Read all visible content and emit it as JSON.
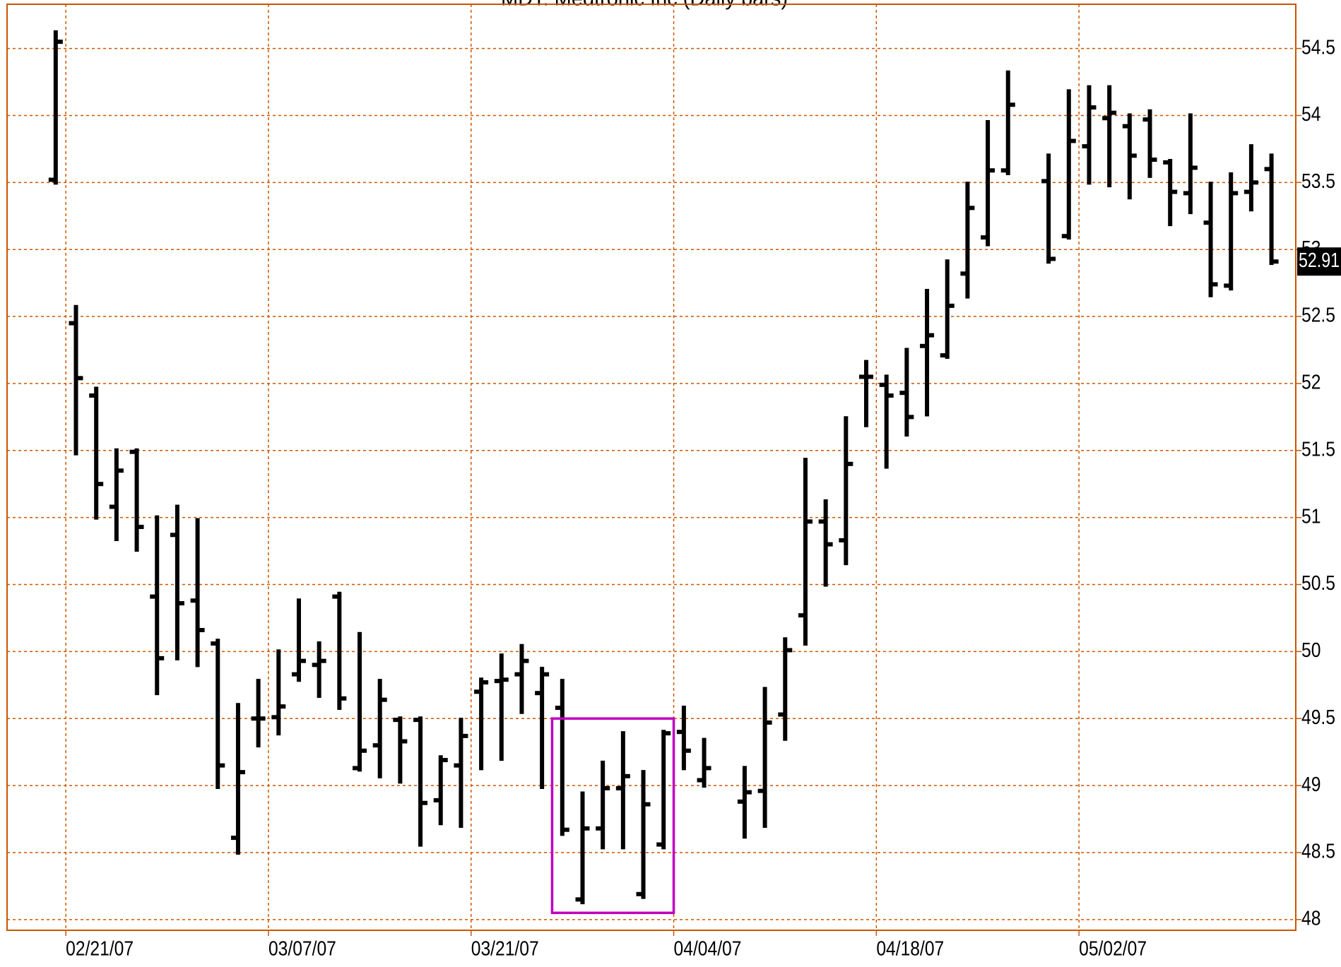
{
  "chart_data": {
    "type": "ohlc",
    "title": "MDT: Medtronic Inc (Daily bars)",
    "x": [
      0,
      1,
      2,
      3,
      4,
      5,
      6,
      7,
      8,
      9,
      10,
      11,
      12,
      13,
      14,
      15,
      16,
      17,
      18,
      19,
      20,
      21,
      22,
      23,
      24,
      25,
      26,
      27,
      28,
      29,
      30,
      31,
      32,
      34,
      35,
      36,
      37,
      38,
      39,
      40,
      41,
      42,
      43,
      44,
      45,
      46,
      47,
      49,
      50,
      51,
      52,
      53,
      54,
      55,
      56,
      57,
      58,
      59,
      60
    ],
    "open": [
      53.52,
      52.45,
      51.91,
      51.08,
      51.49,
      50.41,
      50.87,
      50.38,
      50.06,
      48.61,
      49.5,
      49.51,
      49.83,
      49.9,
      50.41,
      49.13,
      49.3,
      49.49,
      49.49,
      48.89,
      49.15,
      49.7,
      49.78,
      49.83,
      49.69,
      49.58,
      48.15,
      48.68,
      48.98,
      48.19,
      48.56,
      49.4,
      49.04,
      48.88,
      48.96,
      49.53,
      50.27,
      50.97,
      50.83,
      52.05,
      51.99,
      51.93,
      52.28,
      52.21,
      52.82,
      53.09,
      53.59,
      53.51,
      53.1,
      53.77,
      53.98,
      53.92,
      53.97,
      53.65,
      53.42,
      53.2,
      52.73,
      53.43,
      53.6
    ],
    "high": [
      54.62,
      52.57,
      51.96,
      51.5,
      51.5,
      51.0,
      51.08,
      50.98,
      50.08,
      49.6,
      49.78,
      50.0,
      50.38,
      50.06,
      50.43,
      50.13,
      49.78,
      49.5,
      49.5,
      49.21,
      49.49,
      49.79,
      49.97,
      50.04,
      49.87,
      49.78,
      48.94,
      49.17,
      49.39,
      49.1,
      49.4,
      49.58,
      49.34,
      49.13,
      49.72,
      50.09,
      51.43,
      51.12,
      51.74,
      52.16,
      52.05,
      52.25,
      52.69,
      52.91,
      53.49,
      53.95,
      54.32,
      53.7,
      54.18,
      54.21,
      54.21,
      54.0,
      54.03,
      53.66,
      54.0,
      53.49,
      53.56,
      53.77,
      53.7
    ],
    "low": [
      53.5,
      51.48,
      51.0,
      50.84,
      50.76,
      49.69,
      49.95,
      49.9,
      48.99,
      48.5,
      49.3,
      49.39,
      49.79,
      49.67,
      49.58,
      49.12,
      49.07,
      49.03,
      48.56,
      48.72,
      48.7,
      49.13,
      49.2,
      49.55,
      48.99,
      48.64,
      48.13,
      48.54,
      48.54,
      48.17,
      48.54,
      49.13,
      49.0,
      48.62,
      48.7,
      49.35,
      50.06,
      50.5,
      50.66,
      51.69,
      51.38,
      51.62,
      51.77,
      52.2,
      52.65,
      53.04,
      53.57,
      52.91,
      53.09,
      53.5,
      53.48,
      53.39,
      53.55,
      53.19,
      53.28,
      52.66,
      52.71,
      53.3,
      52.9
    ],
    "close": [
      54.55,
      52.04,
      51.25,
      51.35,
      50.93,
      49.95,
      50.36,
      50.16,
      49.15,
      49.1,
      49.5,
      49.59,
      49.93,
      49.93,
      49.65,
      49.26,
      49.64,
      49.33,
      48.87,
      49.19,
      49.37,
      49.77,
      49.79,
      49.93,
      49.83,
      48.67,
      48.68,
      48.98,
      49.07,
      48.86,
      49.39,
      49.26,
      49.13,
      48.95,
      49.47,
      50.01,
      50.97,
      50.8,
      51.4,
      52.05,
      51.91,
      51.75,
      52.36,
      52.58,
      53.31,
      53.59,
      54.08,
      52.93,
      53.81,
      54.06,
      54.02,
      53.7,
      53.67,
      53.43,
      53.61,
      52.74,
      53.42,
      53.5,
      52.91
    ],
    "color": "#000000",
    "grid": true,
    "grid_color": "#cc5500",
    "xlim": [
      -2.4,
      61.2
    ],
    "xticks": [
      {
        "value": 0.5,
        "label": "02/21/07"
      },
      {
        "value": 10.5,
        "label": "03/07/07"
      },
      {
        "value": 20.5,
        "label": "03/21/07"
      },
      {
        "value": 30.5,
        "label": "04/04/07"
      },
      {
        "value": 40.5,
        "label": "04/18/07"
      },
      {
        "value": 50.5,
        "label": "05/02/07"
      }
    ],
    "ylim": [
      47.92,
      54.83
    ],
    "yticks": [
      48,
      48.5,
      49,
      49.5,
      50,
      50.5,
      51,
      51.5,
      52,
      52.5,
      53,
      53.5,
      54,
      54.5
    ],
    "box": {
      "x": [
        24.5,
        30.5
      ],
      "y": [
        48.05,
        49.5
      ],
      "color": "#c000c0"
    }
  }
}
